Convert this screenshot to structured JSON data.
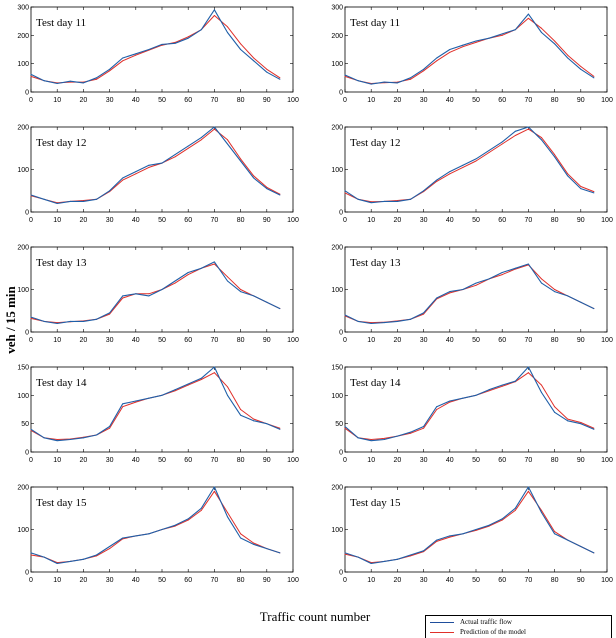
{
  "figure": {
    "y_label": "veh / 15 min",
    "x_label": "Traffic count number"
  },
  "legend": {
    "items": [
      {
        "label": "Actual traffic flow",
        "color": "#1f4e9c"
      },
      {
        "label": "Prediction of the model",
        "color": "#e0302a"
      }
    ]
  },
  "colors": {
    "actual": "#1f5fa8",
    "prediction": "#e0302a"
  },
  "chart_data": [
    {
      "type": "line",
      "title": "Test day 11",
      "xlim": [
        0,
        100
      ],
      "ylim": [
        0,
        300
      ],
      "yticks": [
        0,
        100,
        200,
        300
      ],
      "xticks": [
        0,
        10,
        20,
        30,
        40,
        50,
        60,
        70,
        80,
        90,
        100
      ],
      "x": [
        0,
        5,
        10,
        15,
        20,
        25,
        30,
        35,
        40,
        45,
        50,
        55,
        60,
        65,
        70,
        75,
        80,
        85,
        90,
        95
      ],
      "series": [
        {
          "name": "Actual traffic flow",
          "values": [
            62,
            40,
            30,
            38,
            32,
            50,
            80,
            120,
            135,
            150,
            168,
            172,
            190,
            220,
            290,
            210,
            150,
            110,
            70,
            45
          ]
        },
        {
          "name": "Prediction of the model",
          "values": [
            55,
            40,
            32,
            35,
            35,
            45,
            75,
            110,
            130,
            148,
            165,
            175,
            195,
            220,
            270,
            230,
            170,
            120,
            80,
            50
          ]
        }
      ]
    },
    {
      "type": "line",
      "title": "Test day 11",
      "xlim": [
        0,
        100
      ],
      "ylim": [
        0,
        300
      ],
      "yticks": [
        0,
        100,
        200,
        300
      ],
      "xticks": [
        0,
        10,
        20,
        30,
        40,
        50,
        60,
        70,
        80,
        90,
        100
      ],
      "x": [
        0,
        5,
        10,
        15,
        20,
        25,
        30,
        35,
        40,
        45,
        50,
        55,
        60,
        65,
        70,
        75,
        80,
        85,
        90,
        95
      ],
      "series": [
        {
          "name": "Actual traffic flow",
          "values": [
            60,
            40,
            28,
            35,
            32,
            50,
            80,
            120,
            150,
            165,
            180,
            190,
            205,
            220,
            275,
            210,
            170,
            120,
            80,
            50
          ]
        },
        {
          "name": "Prediction of the model",
          "values": [
            55,
            40,
            30,
            33,
            35,
            45,
            75,
            110,
            140,
            160,
            175,
            190,
            200,
            220,
            260,
            225,
            180,
            130,
            90,
            55
          ]
        }
      ]
    },
    {
      "type": "line",
      "title": "Test day 12",
      "xlim": [
        0,
        100
      ],
      "ylim": [
        0,
        200
      ],
      "yticks": [
        0,
        100,
        200
      ],
      "xticks": [
        0,
        10,
        20,
        30,
        40,
        50,
        60,
        70,
        80,
        90,
        100
      ],
      "x": [
        0,
        5,
        10,
        15,
        20,
        25,
        30,
        35,
        40,
        45,
        50,
        55,
        60,
        65,
        70,
        75,
        80,
        85,
        90,
        95
      ],
      "series": [
        {
          "name": "Actual traffic flow",
          "values": [
            40,
            30,
            20,
            25,
            25,
            30,
            50,
            80,
            95,
            110,
            115,
            135,
            155,
            175,
            200,
            160,
            120,
            80,
            55,
            40
          ]
        },
        {
          "name": "Prediction of the model",
          "values": [
            38,
            30,
            22,
            25,
            27,
            30,
            48,
            75,
            90,
            105,
            115,
            130,
            150,
            170,
            195,
            170,
            125,
            85,
            58,
            42
          ]
        }
      ]
    },
    {
      "type": "line",
      "title": "Test day 12",
      "xlim": [
        0,
        100
      ],
      "ylim": [
        0,
        200
      ],
      "yticks": [
        0,
        100,
        200
      ],
      "xticks": [
        0,
        10,
        20,
        30,
        40,
        50,
        60,
        70,
        80,
        90,
        100
      ],
      "x": [
        0,
        5,
        10,
        15,
        20,
        25,
        30,
        35,
        40,
        45,
        50,
        55,
        60,
        65,
        70,
        75,
        80,
        85,
        90,
        95
      ],
      "series": [
        {
          "name": "Actual traffic flow",
          "values": [
            50,
            30,
            22,
            25,
            25,
            30,
            50,
            75,
            95,
            110,
            125,
            145,
            165,
            190,
            200,
            170,
            130,
            85,
            55,
            45
          ]
        },
        {
          "name": "Prediction of the model",
          "values": [
            45,
            30,
            24,
            25,
            27,
            30,
            48,
            72,
            90,
            105,
            120,
            140,
            160,
            180,
            195,
            175,
            135,
            90,
            60,
            48
          ]
        }
      ]
    },
    {
      "type": "line",
      "title": "Test day 13",
      "xlim": [
        0,
        100
      ],
      "ylim": [
        0,
        200
      ],
      "yticks": [
        0,
        100,
        200
      ],
      "xticks": [
        0,
        10,
        20,
        30,
        40,
        50,
        60,
        70,
        80,
        90,
        100
      ],
      "x": [
        0,
        5,
        10,
        15,
        20,
        25,
        30,
        35,
        40,
        45,
        50,
        55,
        60,
        65,
        70,
        75,
        80,
        85,
        90,
        95
      ],
      "series": [
        {
          "name": "Actual traffic flow",
          "values": [
            35,
            25,
            20,
            25,
            25,
            30,
            45,
            85,
            90,
            85,
            100,
            120,
            140,
            150,
            165,
            120,
            95,
            85,
            70,
            55
          ]
        },
        {
          "name": "Prediction of the model",
          "values": [
            32,
            25,
            22,
            24,
            26,
            30,
            42,
            80,
            90,
            90,
            100,
            115,
            135,
            150,
            160,
            130,
            100,
            85,
            70,
            55
          ]
        }
      ]
    },
    {
      "type": "line",
      "title": "Test day 13",
      "xlim": [
        0,
        100
      ],
      "ylim": [
        0,
        200
      ],
      "yticks": [
        0,
        100,
        200
      ],
      "xticks": [
        0,
        10,
        20,
        30,
        40,
        50,
        60,
        70,
        80,
        90,
        100
      ],
      "x": [
        0,
        5,
        10,
        15,
        20,
        25,
        30,
        35,
        40,
        45,
        50,
        55,
        60,
        65,
        70,
        75,
        80,
        85,
        90,
        95
      ],
      "series": [
        {
          "name": "Actual traffic flow",
          "values": [
            40,
            25,
            20,
            22,
            25,
            30,
            45,
            80,
            95,
            100,
            115,
            125,
            140,
            150,
            160,
            115,
            95,
            85,
            70,
            55
          ]
        },
        {
          "name": "Prediction of the model",
          "values": [
            38,
            25,
            22,
            23,
            26,
            30,
            42,
            78,
            92,
            100,
            110,
            125,
            135,
            148,
            158,
            125,
            100,
            85,
            70,
            55
          ]
        }
      ]
    },
    {
      "type": "line",
      "title": "Test day 14",
      "xlim": [
        0,
        100
      ],
      "ylim": [
        0,
        150
      ],
      "yticks": [
        0,
        50,
        100,
        150
      ],
      "xticks": [
        0,
        10,
        20,
        30,
        40,
        50,
        60,
        70,
        80,
        90,
        100
      ],
      "x": [
        0,
        5,
        10,
        15,
        20,
        25,
        30,
        35,
        40,
        45,
        50,
        55,
        60,
        65,
        70,
        75,
        80,
        85,
        90,
        95
      ],
      "series": [
        {
          "name": "Actual traffic flow",
          "values": [
            40,
            25,
            20,
            22,
            25,
            30,
            45,
            85,
            90,
            95,
            100,
            110,
            120,
            130,
            150,
            100,
            65,
            55,
            50,
            40
          ]
        },
        {
          "name": "Prediction of the model",
          "values": [
            38,
            25,
            22,
            23,
            26,
            30,
            42,
            80,
            88,
            95,
            100,
            108,
            118,
            128,
            140,
            115,
            75,
            58,
            50,
            42
          ]
        }
      ]
    },
    {
      "type": "line",
      "title": "Test day 14",
      "xlim": [
        0,
        100
      ],
      "ylim": [
        0,
        150
      ],
      "yticks": [
        0,
        50,
        100,
        150
      ],
      "xticks": [
        0,
        10,
        20,
        30,
        40,
        50,
        60,
        70,
        80,
        90,
        100
      ],
      "x": [
        0,
        5,
        10,
        15,
        20,
        25,
        30,
        35,
        40,
        45,
        50,
        55,
        60,
        65,
        70,
        75,
        80,
        85,
        90,
        95
      ],
      "series": [
        {
          "name": "Actual traffic flow",
          "values": [
            45,
            25,
            20,
            22,
            28,
            35,
            45,
            80,
            90,
            95,
            100,
            110,
            118,
            125,
            150,
            105,
            70,
            55,
            50,
            40
          ]
        },
        {
          "name": "Prediction of the model",
          "values": [
            42,
            25,
            22,
            24,
            28,
            33,
            42,
            75,
            88,
            95,
            100,
            108,
            116,
            124,
            140,
            118,
            80,
            58,
            52,
            42
          ]
        }
      ]
    },
    {
      "type": "line",
      "title": "Test day 15",
      "xlim": [
        0,
        100
      ],
      "ylim": [
        0,
        200
      ],
      "yticks": [
        0,
        100,
        200
      ],
      "xticks": [
        0,
        10,
        20,
        30,
        40,
        50,
        60,
        70,
        80,
        90,
        100
      ],
      "x": [
        0,
        5,
        10,
        15,
        20,
        25,
        30,
        35,
        40,
        45,
        50,
        55,
        60,
        65,
        70,
        75,
        80,
        85,
        90,
        95
      ],
      "series": [
        {
          "name": "Actual traffic flow",
          "values": [
            45,
            35,
            20,
            25,
            30,
            40,
            60,
            80,
            85,
            90,
            100,
            110,
            125,
            150,
            200,
            130,
            80,
            65,
            55,
            45
          ]
        },
        {
          "name": "Prediction of the model",
          "values": [
            40,
            35,
            22,
            25,
            30,
            38,
            55,
            78,
            85,
            90,
            100,
            108,
            122,
            145,
            190,
            140,
            90,
            68,
            55,
            45
          ]
        }
      ]
    },
    {
      "type": "line",
      "title": "Test day 15",
      "xlim": [
        0,
        100
      ],
      "ylim": [
        0,
        200
      ],
      "yticks": [
        0,
        100,
        200
      ],
      "xticks": [
        0,
        10,
        20,
        30,
        40,
        50,
        60,
        70,
        80,
        90,
        100
      ],
      "x": [
        0,
        5,
        10,
        15,
        20,
        25,
        30,
        35,
        40,
        45,
        50,
        55,
        60,
        65,
        70,
        75,
        80,
        85,
        90,
        95
      ],
      "series": [
        {
          "name": "Actual traffic flow",
          "values": [
            45,
            35,
            20,
            25,
            30,
            40,
            50,
            75,
            85,
            90,
            100,
            110,
            125,
            150,
            200,
            140,
            90,
            75,
            60,
            45
          ]
        },
        {
          "name": "Prediction of the model",
          "values": [
            42,
            35,
            22,
            25,
            30,
            38,
            48,
            72,
            82,
            90,
            98,
            108,
            122,
            145,
            190,
            145,
            95,
            75,
            60,
            45
          ]
        }
      ]
    }
  ]
}
